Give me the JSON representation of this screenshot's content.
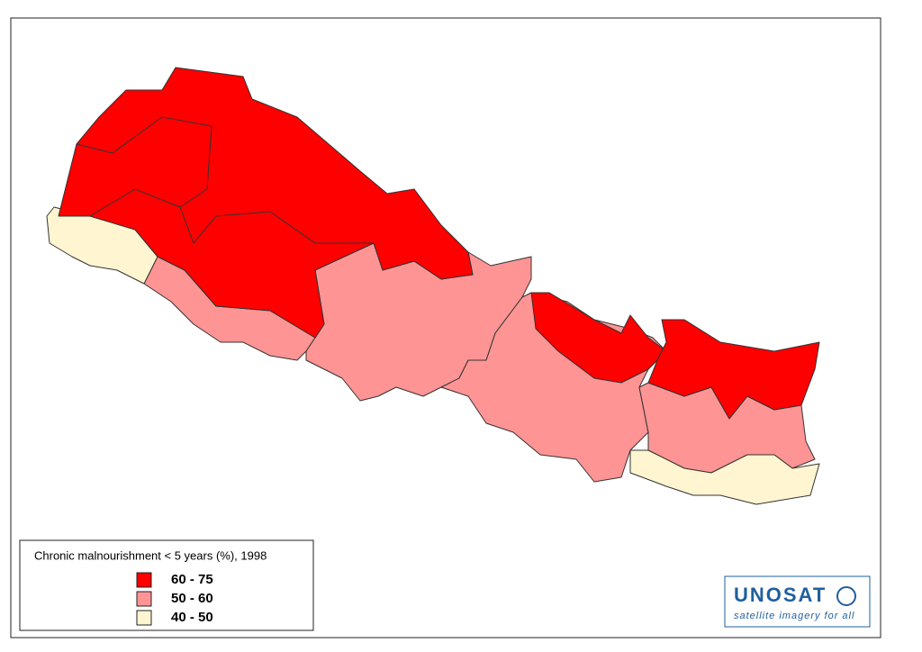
{
  "legend": {
    "title": "Chronic malnourishment < 5 years (%), 1998",
    "items": [
      {
        "label": "60 - 75",
        "color": "#ff0000"
      },
      {
        "label": "50 - 60",
        "color": "#ff9494"
      },
      {
        "label": "40 - 50",
        "color": "#fff5d0"
      }
    ]
  },
  "logo": {
    "name": "UNOSAT",
    "tagline": "satellite imagery for all"
  }
}
